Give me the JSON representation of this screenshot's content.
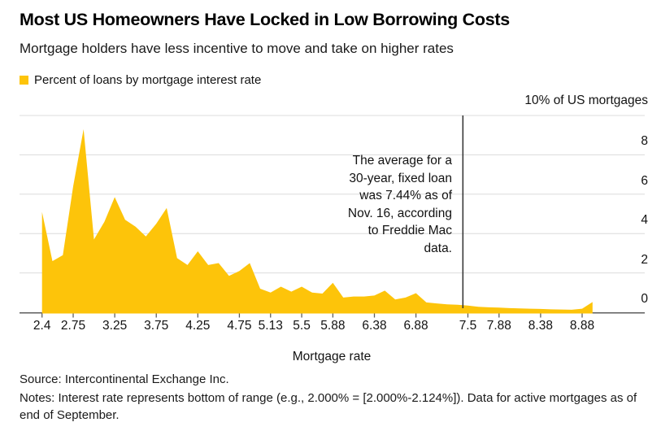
{
  "header": {
    "title": "Most US Homeowners Have Locked in Low Borrowing Costs",
    "subtitle": "Mortgage holders have less incentive to move and take on higher rates"
  },
  "legend": {
    "label": "Percent of loans by mortgage interest rate",
    "swatch_color": "#FDC40A"
  },
  "chart_data": {
    "type": "area",
    "title": "Percent of loans by mortgage interest rate",
    "xlabel": "Mortgage rate",
    "ylabel": "10% of US mortgages",
    "ylim": [
      0,
      10
    ],
    "grid": true,
    "y_gridlines": [
      10,
      8,
      6,
      4,
      2
    ],
    "y_tick_labels": [
      {
        "v": 8,
        "label": "8"
      },
      {
        "v": 6,
        "label": "6"
      },
      {
        "v": 4,
        "label": "4"
      },
      {
        "v": 2,
        "label": "2"
      },
      {
        "v": 0,
        "label": "0"
      }
    ],
    "x_ticks": [
      {
        "rate": 2.375,
        "label": "2.4"
      },
      {
        "rate": 2.75,
        "label": "2.75"
      },
      {
        "rate": 3.25,
        "label": "3.25"
      },
      {
        "rate": 3.75,
        "label": "3.75"
      },
      {
        "rate": 4.25,
        "label": "4.25"
      },
      {
        "rate": 4.75,
        "label": "4.75"
      },
      {
        "rate": 5.125,
        "label": "5.13"
      },
      {
        "rate": 5.5,
        "label": "5.5"
      },
      {
        "rate": 5.875,
        "label": "5.88"
      },
      {
        "rate": 6.375,
        "label": "6.38"
      },
      {
        "rate": 6.875,
        "label": "6.88"
      },
      {
        "rate": 7.5,
        "label": "7.5"
      },
      {
        "rate": 7.875,
        "label": "7.88"
      },
      {
        "rate": 8.375,
        "label": "8.38"
      },
      {
        "rate": 8.875,
        "label": "8.88"
      }
    ],
    "x": [
      2.375,
      2.5,
      2.625,
      2.75,
      2.875,
      3.0,
      3.125,
      3.25,
      3.375,
      3.5,
      3.625,
      3.75,
      3.875,
      4.0,
      4.125,
      4.25,
      4.375,
      4.5,
      4.625,
      4.75,
      4.875,
      5.0,
      5.125,
      5.25,
      5.375,
      5.5,
      5.625,
      5.75,
      5.875,
      6.0,
      6.125,
      6.25,
      6.375,
      6.5,
      6.625,
      6.75,
      6.875,
      7.0,
      7.125,
      7.25,
      7.375,
      7.5,
      7.625,
      7.75,
      7.875,
      8.0,
      8.125,
      8.25,
      8.375,
      8.5,
      8.625,
      8.75,
      8.875,
      9.0
    ],
    "values": [
      5.1,
      2.6,
      2.9,
      6.4,
      9.3,
      3.7,
      4.6,
      5.85,
      4.7,
      4.35,
      3.85,
      4.5,
      5.3,
      2.75,
      2.4,
      3.1,
      2.4,
      2.5,
      1.85,
      2.1,
      2.5,
      1.2,
      1.0,
      1.3,
      1.05,
      1.3,
      1.0,
      0.95,
      1.5,
      0.75,
      0.8,
      0.8,
      0.85,
      1.1,
      0.65,
      0.75,
      0.97,
      0.5,
      0.45,
      0.4,
      0.38,
      0.34,
      0.28,
      0.25,
      0.24,
      0.21,
      0.2,
      0.18,
      0.17,
      0.15,
      0.14,
      0.13,
      0.18,
      0.52
    ],
    "annotation": {
      "marker_rate": 7.44,
      "lines": [
        "The average for a",
        "30-year, fixed loan",
        "was 7.44% as of",
        "Nov. 16, according",
        "to Freddie Mac",
        "data."
      ]
    },
    "colors": {
      "area": "#FDC40A",
      "grid": "#dcdcdc",
      "axis": "#5f5f5f",
      "annotation_line": "#2e2e2e"
    }
  },
  "footer": {
    "source": "Source: Intercontinental Exchange Inc.",
    "notes": "Notes: Interest rate represents bottom of range (e.g., 2.000% = [2.000%-2.124%]). Data for active mortgages as of end of September."
  }
}
